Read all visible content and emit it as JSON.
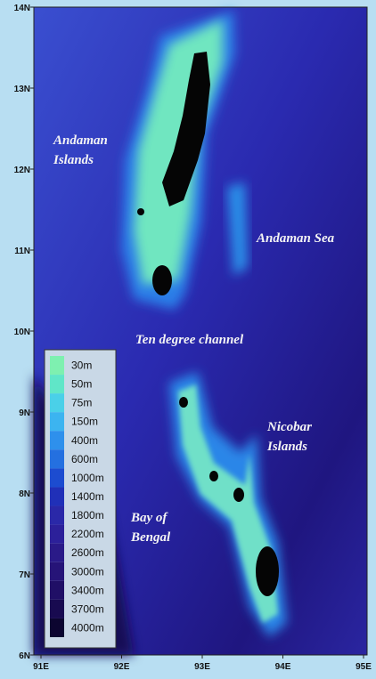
{
  "map": {
    "lat_labels": [
      "14N",
      "13N",
      "12N",
      "11N",
      "10N",
      "9N",
      "8N",
      "7N",
      "6N"
    ],
    "lon_labels": [
      "91E",
      "92E",
      "93E",
      "94E",
      "95E"
    ],
    "place_labels": [
      {
        "lines": [
          "Andaman",
          "Islands"
        ]
      },
      {
        "lines": [
          "Andaman Sea"
        ]
      },
      {
        "lines": [
          "Ten degree channel"
        ]
      },
      {
        "lines": [
          "Nicobar",
          "Islands"
        ]
      },
      {
        "lines": [
          "Bay of",
          "Bengal"
        ]
      }
    ],
    "legend": [
      "30m",
      "50m",
      "75m",
      "150m",
      "400m",
      "600m",
      "1000m",
      "1400m",
      "1800m",
      "2200m",
      "2600m",
      "3000m",
      "3400m",
      "3700m",
      "4000m"
    ]
  }
}
